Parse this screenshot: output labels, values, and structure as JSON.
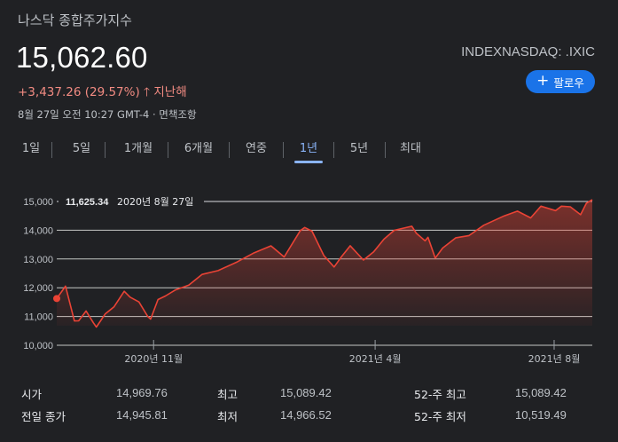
{
  "header": {
    "title": "나스닥 종합주가지수",
    "price": "15,062.60",
    "change": "+3,437.26 (29.57%)",
    "change_period": "지난해",
    "meta": "8월 27일 오전 10:27 GMT-4 · 면책조항",
    "ticker": "INDEXNASDAQ: .IXIC",
    "follow_label": "팔로우"
  },
  "tabs": [
    {
      "label": "1일",
      "active": false
    },
    {
      "label": "5일",
      "active": false
    },
    {
      "label": "1개월",
      "active": false
    },
    {
      "label": "6개월",
      "active": false
    },
    {
      "label": "연중",
      "active": false
    },
    {
      "label": "1년",
      "active": true
    },
    {
      "label": "5년",
      "active": false
    },
    {
      "label": "최대",
      "active": false
    }
  ],
  "colors": {
    "line": "#ea4335",
    "accent": "#1a73e8",
    "tab_active": "#8ab4f8",
    "positive": "#f28b82"
  },
  "chart_data": {
    "type": "area",
    "ylim": [
      10000,
      15200
    ],
    "yticks": [
      "15,000",
      "14,000",
      "13,000",
      "12,000",
      "11,000",
      "10,000"
    ],
    "ytick_values": [
      15000,
      14000,
      13000,
      12000,
      11000,
      10000
    ],
    "x_ticks": [
      "2020년 11월",
      "2021년 4월",
      "2021년 8월"
    ],
    "x_tick_dates": [
      "2020-11-01",
      "2021-04-01",
      "2021-08-01"
    ],
    "x_range": [
      "2020-08-27",
      "2021-08-27"
    ],
    "start_label_value": "11,625.34",
    "start_label_date": "2020년 8월 27일",
    "series": [
      {
        "x": [
          "2020-08-27",
          "2020-09-02",
          "2020-09-08",
          "2020-09-11",
          "2020-09-16",
          "2020-09-21",
          "2020-09-23",
          "2020-09-29",
          "2020-10-05",
          "2020-10-12",
          "2020-10-16",
          "2020-10-22",
          "2020-10-28",
          "2020-10-30",
          "2020-11-04",
          "2020-11-09",
          "2020-11-16",
          "2020-11-25",
          "2020-12-04",
          "2020-12-15",
          "2020-12-28",
          "2021-01-08",
          "2021-01-20",
          "2021-01-29",
          "2021-02-09",
          "2021-02-12",
          "2021-02-17",
          "2021-02-25",
          "2021-03-04",
          "2021-03-09",
          "2021-03-15",
          "2021-03-24",
          "2021-03-31",
          "2021-04-07",
          "2021-04-14",
          "2021-04-26",
          "2021-04-29",
          "2021-05-05",
          "2021-05-07",
          "2021-05-12",
          "2021-05-17",
          "2021-05-26",
          "2021-06-04",
          "2021-06-14",
          "2021-06-28",
          "2021-07-07",
          "2021-07-16",
          "2021-07-23",
          "2021-08-02",
          "2021-08-06",
          "2021-08-12",
          "2021-08-19",
          "2021-08-23",
          "2021-08-27"
        ],
        "values": [
          11625,
          12056,
          10847,
          10853,
          11190,
          10778,
          10633,
          11085,
          11332,
          11876,
          11672,
          11506,
          11004,
          10912,
          11590,
          11713,
          11925,
          12094,
          12464,
          12596,
          12899,
          13202,
          13457,
          13070,
          13987,
          14095,
          13965,
          13119,
          12723,
          13073,
          13460,
          12962,
          13247,
          13688,
          13996,
          14138,
          13900,
          13633,
          13752,
          13032,
          13379,
          13738,
          13814,
          14174,
          14500,
          14665,
          14428,
          14837,
          14681,
          14835,
          14816,
          14541,
          14942,
          15062
        ]
      }
    ]
  },
  "stats": [
    [
      {
        "label": "시가",
        "value": "14,969.76"
      },
      {
        "label": "최고",
        "value": "15,089.42"
      },
      {
        "label": "52-주 최고",
        "value": "15,089.42"
      }
    ],
    [
      {
        "label": "전일 종가",
        "value": "14,945.81"
      },
      {
        "label": "최저",
        "value": "14,966.52"
      },
      {
        "label": "52-주 최저",
        "value": "10,519.49"
      }
    ]
  ]
}
